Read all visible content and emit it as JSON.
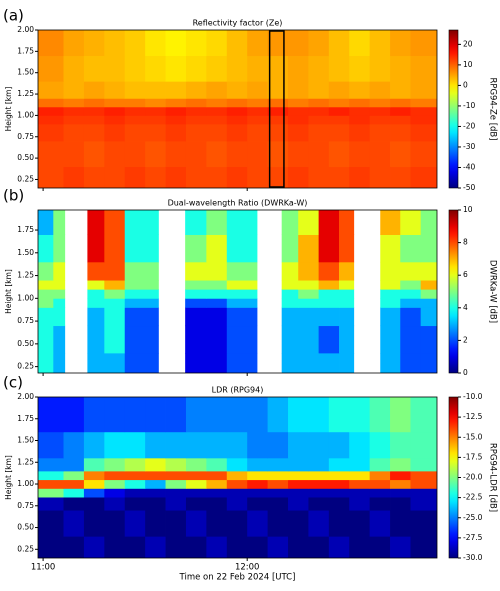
{
  "chart_data": [
    {
      "type": "heatmap",
      "panel_label": "(a)",
      "title": "Reflectivity factor (Ze)",
      "ylabel": "Height [km]",
      "colorbar_label": "RPG94-Ze [dB]",
      "colormap": "jet",
      "xlim": [
        10.975,
        12.93
      ],
      "ylim": [
        0.15,
        2.0
      ],
      "yticks": [
        0.25,
        {
          "value": 0.5,
          "label": "0.50"
        },
        0.75,
        {
          "value": 1.0,
          "label": "1.00"
        },
        1.25,
        {
          "value": 1.5,
          "label": "1.50"
        },
        1.75,
        {
          "value": 2.0,
          "label": "2.00"
        }
      ],
      "clim": [
        -50,
        27
      ],
      "cticks": [
        -50,
        -40,
        -30,
        -20,
        -10,
        0,
        10,
        20
      ],
      "highlight_x": [
        12.11,
        12.18
      ],
      "x_edges": [
        10.975,
        11.1,
        11.2,
        11.3,
        11.4,
        11.5,
        11.6,
        11.7,
        11.8,
        11.9,
        12.0,
        12.1,
        12.2,
        12.3,
        12.4,
        12.5,
        12.6,
        12.7,
        12.8,
        12.93
      ],
      "y_edges": [
        0.15,
        0.4,
        0.7,
        0.9,
        1.0,
        1.1,
        1.2,
        1.4,
        1.7,
        2.0
      ],
      "z": [
        [
          12,
          13,
          12,
          12,
          13,
          12,
          13,
          12,
          12,
          13,
          12,
          12,
          13,
          12,
          12,
          13,
          12,
          12,
          13
        ],
        [
          12,
          12,
          11,
          12,
          12,
          11,
          12,
          12,
          11,
          12,
          12,
          11,
          12,
          12,
          11,
          12,
          12,
          11,
          12
        ],
        [
          13,
          12,
          12,
          13,
          12,
          12,
          13,
          12,
          12,
          13,
          12,
          12,
          13,
          12,
          12,
          13,
          12,
          12,
          13
        ],
        [
          14,
          13,
          13,
          14,
          13,
          13,
          14,
          13,
          13,
          14,
          13,
          13,
          14,
          13,
          13,
          14,
          13,
          13,
          14
        ],
        [
          15,
          14,
          14,
          15,
          14,
          14,
          15,
          14,
          14,
          15,
          14,
          15,
          14,
          14,
          15,
          14,
          14,
          15,
          14
        ],
        [
          9,
          8,
          9,
          8,
          8,
          7,
          8,
          9,
          8,
          9,
          8,
          9,
          8,
          9,
          8,
          9,
          8,
          9,
          8
        ],
        [
          5,
          4,
          5,
          4,
          3,
          3,
          3,
          4,
          5,
          4,
          5,
          4,
          5,
          4,
          5,
          4,
          5,
          4,
          5
        ],
        [
          6,
          4,
          3,
          3,
          2,
          1,
          0,
          1,
          2,
          3,
          4,
          4,
          5,
          4,
          3,
          2,
          3,
          4,
          5
        ],
        [
          7,
          5,
          4,
          3,
          2,
          0,
          -1,
          0,
          1,
          3,
          5,
          6,
          6,
          5,
          3,
          1,
          3,
          5,
          6
        ]
      ]
    },
    {
      "type": "heatmap",
      "panel_label": "(b)",
      "title": "Dual-wavelength Ratio (DWRKa-W)",
      "ylabel": "Height [km]",
      "colorbar_label": "DWRKa-W [dB]",
      "colormap": "jet",
      "xlim": [
        10.975,
        12.93
      ],
      "ylim": [
        0.18,
        1.97
      ],
      "yticks": [
        0.25,
        {
          "value": 0.5,
          "label": "0.50"
        },
        0.75,
        {
          "value": 1.0,
          "label": "1.00"
        },
        1.25,
        {
          "value": 1.5,
          "label": "1.50"
        },
        1.75
      ],
      "clim": [
        0,
        10
      ],
      "cticks": [
        0,
        2,
        4,
        6,
        8,
        10
      ],
      "x_edges": [
        10.975,
        11.05,
        11.106,
        11.217,
        11.3,
        11.4,
        11.565,
        11.696,
        11.8,
        11.9,
        12.048,
        12.169,
        12.25,
        12.35,
        12.45,
        12.522,
        12.652,
        12.75,
        12.85,
        12.93
      ],
      "y_edges": [
        0.18,
        0.4,
        0.7,
        0.9,
        1.0,
        1.1,
        1.2,
        1.4,
        1.7,
        1.97
      ],
      "z": [
        [
          4,
          3,
          null,
          3,
          3,
          2,
          null,
          1,
          1,
          2,
          null,
          3,
          3,
          3,
          3,
          null,
          3,
          2,
          2
        ],
        [
          4,
          3,
          null,
          3,
          4,
          2,
          null,
          1,
          1,
          2,
          null,
          3,
          3,
          2,
          3,
          null,
          3,
          2,
          2
        ],
        [
          4,
          4,
          null,
          3,
          4,
          2,
          null,
          1,
          1,
          2,
          null,
          3,
          3,
          3,
          3,
          null,
          3,
          2,
          3
        ],
        [
          5,
          4,
          null,
          4,
          4,
          3,
          null,
          2,
          2,
          3,
          null,
          4,
          4,
          4,
          4,
          null,
          4,
          3,
          3
        ],
        [
          5,
          5,
          null,
          4,
          5,
          4,
          null,
          4,
          4,
          4,
          null,
          4,
          5,
          4,
          4,
          null,
          4,
          4,
          5
        ],
        [
          6,
          6,
          null,
          6,
          7,
          5,
          null,
          5,
          5,
          6,
          null,
          6,
          6,
          7,
          6,
          null,
          6,
          5,
          7
        ],
        [
          5,
          6,
          null,
          8,
          8,
          5,
          null,
          6,
          6,
          5,
          null,
          6,
          7,
          8,
          7,
          null,
          6,
          6,
          6
        ],
        [
          4,
          5,
          null,
          9,
          8,
          4,
          null,
          5,
          6,
          4,
          null,
          5,
          7,
          9,
          8,
          null,
          6,
          5,
          5
        ],
        [
          3,
          5,
          null,
          9,
          8,
          4,
          null,
          4,
          5,
          4,
          null,
          5,
          6,
          9,
          8,
          null,
          7,
          6,
          5
        ]
      ]
    },
    {
      "type": "heatmap",
      "panel_label": "(c)",
      "title": "LDR (RPG94)",
      "ylabel": "Height [km]",
      "colorbar_label": "RPG94-LDR [dB]",
      "colormap": "jet",
      "xlabel": "Time on 22 Feb 2024 [UTC]",
      "xlim": [
        10.975,
        12.93
      ],
      "xticks": [
        {
          "value": 11,
          "label": "11:00"
        },
        {
          "value": 12,
          "label": "12:00"
        }
      ],
      "ylim": [
        0.15,
        2.0
      ],
      "yticks": [
        0.25,
        {
          "value": 0.5,
          "label": "0.50"
        },
        0.75,
        {
          "value": 1.0,
          "label": "1.00"
        },
        1.25,
        {
          "value": 1.5,
          "label": "1.50"
        },
        1.75,
        {
          "value": 2.0,
          "label": "2.00"
        }
      ],
      "clim": [
        -30,
        -10
      ],
      "cticks": [
        {
          "value": -30,
          "label": "-30.0"
        },
        {
          "value": -27.5,
          "label": "-27.5"
        },
        {
          "value": -25,
          "label": "-25.0"
        },
        {
          "value": -22.5,
          "label": "-22.5"
        },
        {
          "value": -20,
          "label": "-20.0"
        },
        {
          "value": -17.5,
          "label": "-17.5"
        },
        {
          "value": -15,
          "label": "-15.0"
        },
        {
          "value": -12.5,
          "label": "-12.5"
        },
        {
          "value": -10,
          "label": "-10.0"
        }
      ],
      "x_edges": [
        10.975,
        11.1,
        11.2,
        11.3,
        11.4,
        11.5,
        11.6,
        11.7,
        11.8,
        11.9,
        12.0,
        12.1,
        12.2,
        12.3,
        12.4,
        12.5,
        12.6,
        12.7,
        12.8,
        12.93
      ],
      "y_edges": [
        0.15,
        0.4,
        0.7,
        0.85,
        0.95,
        1.05,
        1.15,
        1.3,
        1.6,
        2.0
      ],
      "z": [
        [
          -30,
          -30,
          -29,
          -30,
          -30,
          -29,
          -30,
          -30,
          -29,
          -30,
          -30,
          -29,
          -30,
          -30,
          -29,
          -30,
          -30,
          -29,
          -30
        ],
        [
          -30,
          -29,
          -30,
          -30,
          -29,
          -30,
          -30,
          -29,
          -30,
          -30,
          -29,
          -30,
          -30,
          -29,
          -30,
          -30,
          -29,
          -30,
          -30
        ],
        [
          -29,
          -30,
          -30,
          -29,
          -30,
          -30,
          -29,
          -30,
          -30,
          -29,
          -30,
          -30,
          -29,
          -30,
          -30,
          -29,
          -30,
          -30,
          -29
        ],
        [
          -20,
          -22,
          -26,
          -28,
          -29,
          -29,
          -29,
          -29,
          -29,
          -29,
          -29,
          -29,
          -29,
          -29,
          -29,
          -29,
          -29,
          -29,
          -29
        ],
        [
          -14,
          -14,
          -17,
          -20,
          -22,
          -24,
          -20,
          -18,
          -16,
          -14,
          -13,
          -14,
          -13,
          -13,
          -13,
          -14,
          -14,
          -15,
          -14
        ],
        [
          -22,
          -20,
          -15,
          -14,
          -14,
          -14,
          -14,
          -14,
          -14,
          -16,
          -17,
          -17,
          -17,
          -17,
          -17,
          -17,
          -15,
          -13,
          -14
        ],
        [
          -25,
          -25,
          -21,
          -20,
          -19,
          -18,
          -19,
          -20,
          -21,
          -23,
          -24,
          -24,
          -24,
          -24,
          -23,
          -23,
          -21,
          -20,
          -21
        ],
        [
          -26,
          -25,
          -24,
          -23,
          -23,
          -24,
          -24,
          -24,
          -24,
          -24,
          -25,
          -25,
          -24,
          -24,
          -24,
          -23,
          -22,
          -21,
          -21
        ],
        [
          -27,
          -27,
          -26,
          -26,
          -26,
          -26,
          -26,
          -25,
          -25,
          -25,
          -25,
          -24,
          -23,
          -23,
          -22,
          -22,
          -21,
          -20,
          -21
        ]
      ]
    }
  ]
}
